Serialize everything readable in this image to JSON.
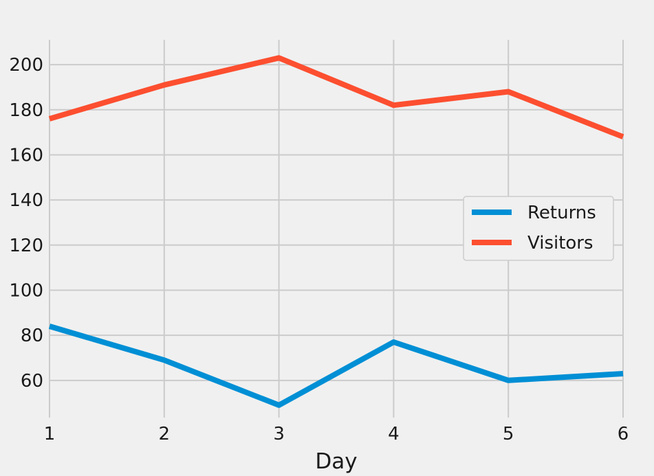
{
  "chart_data": {
    "type": "line",
    "title": "",
    "xlabel": "Day",
    "ylabel": "",
    "x": [
      1,
      2,
      3,
      4,
      5,
      6
    ],
    "xlim": [
      1,
      6
    ],
    "ylim": [
      43.5,
      211
    ],
    "xticks": [
      1,
      2,
      3,
      4,
      5,
      6
    ],
    "yticks": [
      60,
      80,
      100,
      120,
      140,
      160,
      180,
      200
    ],
    "grid": true,
    "legend_position": "center-right",
    "series": [
      {
        "name": "Returns",
        "values": [
          84,
          69,
          49,
          77,
          60,
          63
        ],
        "color": "#008fd5"
      },
      {
        "name": "Visitors",
        "values": [
          176,
          191,
          203,
          182,
          188,
          168
        ],
        "color": "#fc4f30"
      }
    ]
  },
  "colors": {
    "background": "#f0f0f0",
    "grid": "#cbcbcb",
    "legend_border": "#cccccc"
  }
}
